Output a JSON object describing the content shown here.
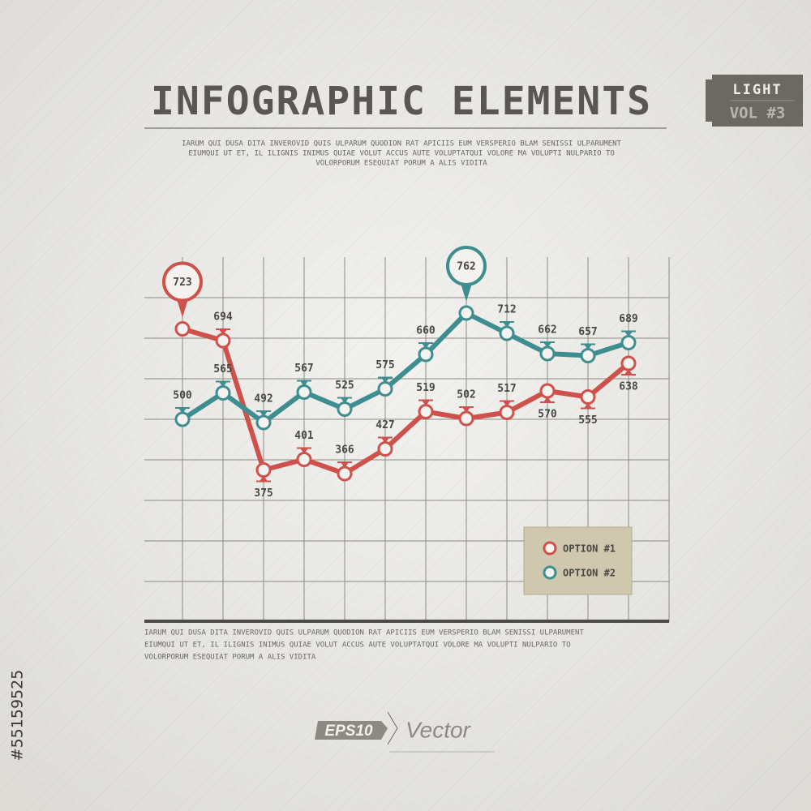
{
  "chart_data": {
    "type": "line",
    "title": "INFOGRAPHIC ELEMENTS",
    "badge_top": "LIGHT",
    "badge_bottom": "VOL #3",
    "description": [
      "IARUM QUI DUSA DITA INVEROVID QUIS ULPARUM QUODION RAT APICIIS EUM VERSPERIO BLAM SENISSI ULPARUMENT",
      "EIUMQUI UT ET, IL ILIGNIS INIMUS QUIAE VOLUT ACCUS AUTE VOLUPTATQUI VOLORE MA VOLUPTI NULPARIO TO",
      "VOLORPORUM ESEQUIAT PORUM A ALIS VIDITA"
    ],
    "footnote": [
      "IARUM QUI DUSA DITA INVEROVID QUIS ULPARUM QUODION RAT APICIIS EUM VERSPERIO BLAM SENISSI ULPARUMENT",
      "EIUMQUI UT ET, IL ILIGNIS INIMUS QUIAE VOLUT ACCUS AUTE VOLUPTATQUI VOLORE MA VOLUPTI NULPARIO TO",
      "VOLORPORUM ESEQUIAT PORUM A ALIS VIDITA"
    ],
    "format_label": "EPS10",
    "format_text": "Vector",
    "stock_id": "#55159525",
    "categories": [
      null,
      null,
      null,
      null,
      null,
      null,
      null,
      null,
      null,
      null,
      null,
      null
    ],
    "series": [
      {
        "name": "OPTION #1",
        "color": "#cf514c",
        "values": [
          723,
          694,
          375,
          401,
          366,
          427,
          519,
          502,
          517,
          570,
          555,
          638
        ]
      },
      {
        "name": "OPTION #2",
        "color": "#3e8e91",
        "values": [
          500,
          565,
          492,
          567,
          525,
          575,
          660,
          762,
          712,
          662,
          657,
          689
        ]
      }
    ],
    "ylim": [
      0,
      900
    ],
    "yticks": [
      100,
      200,
      300,
      400,
      500,
      600,
      700,
      800
    ],
    "grid": true,
    "legend": "lower right"
  }
}
